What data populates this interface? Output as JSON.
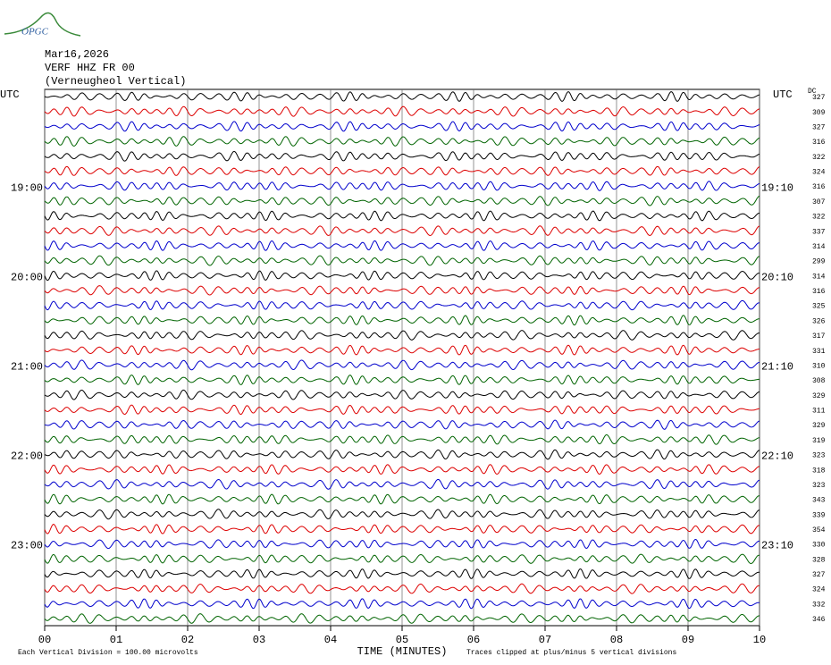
{
  "chart_data": {
    "type": "helicorder",
    "logo": "OPGC",
    "title": "Mar16,2026",
    "subtitle": "VERF HHZ FR 00",
    "station": "(Verneugheol Vertical)",
    "left_header": "UTC",
    "right_header": "UTC",
    "dc_header": "DC",
    "categories": [
      null,
      null,
      null,
      null,
      null,
      null,
      "19:00",
      null,
      null,
      null,
      null,
      null,
      "20:00",
      null,
      null,
      null,
      null,
      null,
      "21:00",
      null,
      null,
      null,
      null,
      null,
      "22:00",
      null,
      null,
      null,
      null,
      null,
      "23:00",
      null,
      null,
      null,
      null,
      null
    ],
    "right_categories": [
      null,
      null,
      null,
      null,
      null,
      null,
      "19:10",
      null,
      null,
      null,
      null,
      null,
      "20:10",
      null,
      null,
      null,
      null,
      null,
      "21:10",
      null,
      null,
      null,
      null,
      null,
      "22:10",
      null,
      null,
      null,
      null,
      null,
      "23:10",
      null,
      null,
      null,
      null,
      null
    ],
    "values": [
      327,
      309,
      327,
      316,
      322,
      324,
      316,
      307,
      322,
      337,
      314,
      299,
      314,
      316,
      325,
      326,
      317,
      331,
      310,
      308,
      329,
      311,
      329,
      319,
      323,
      318,
      323,
      343,
      339,
      354,
      330,
      328,
      327,
      324,
      332,
      346
    ],
    "colors": [
      "#000000",
      "#dd0000",
      "#0000cc",
      "#006400"
    ],
    "xlim": [
      0,
      10
    ],
    "xticks": [
      {
        "value": 0,
        "label": "00"
      },
      {
        "value": 1,
        "label": "01"
      },
      {
        "value": 2,
        "label": "02"
      },
      {
        "value": 3,
        "label": "03"
      },
      {
        "value": 4,
        "label": "04"
      },
      {
        "value": 5,
        "label": "05"
      },
      {
        "value": 6,
        "label": "06"
      },
      {
        "value": 7,
        "label": "07"
      },
      {
        "value": 8,
        "label": "08"
      },
      {
        "value": 9,
        "label": "09"
      },
      {
        "value": 10,
        "label": "10"
      }
    ],
    "xlabel": "TIME (MINUTES)",
    "footer_left": "Each Vertical Division =  100.00 microvolts",
    "footer_right": "Traces clipped at plus/minus 5 vertical divisions",
    "grid": true
  }
}
